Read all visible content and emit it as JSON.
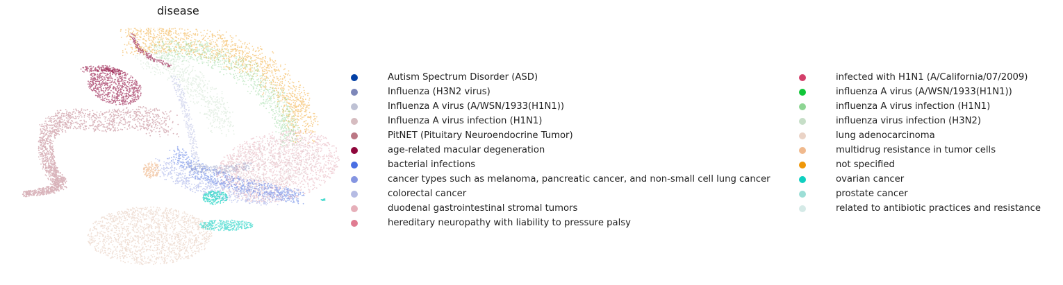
{
  "chart_data": {
    "type": "scatter",
    "title": "disease",
    "xlabel": "",
    "ylabel": "",
    "axes_visible": false,
    "grid": false,
    "legend_placement": "right",
    "legend_columns": 2,
    "series": [
      {
        "name": "Autism Spectrum Disorder (ASD)",
        "color": "#023fa5"
      },
      {
        "name": "Influenza (H3N2 virus)",
        "color": "#7d87b9"
      },
      {
        "name": "Influenza A virus (A/WSN/1933(H1N1))",
        "color": "#bec1d4"
      },
      {
        "name": "Influenza A virus infection (H1N1)",
        "color": "#d6bcc0"
      },
      {
        "name": "PitNET (Pituitary Neuroendocrine Tumor)",
        "color": "#bb7784"
      },
      {
        "name": "age-related macular degeneration",
        "color": "#8e063b"
      },
      {
        "name": "bacterial infections",
        "color": "#4a6fe3"
      },
      {
        "name": "cancer types such as melanoma, pancreatic cancer, and non-small cell lung cancer",
        "color": "#8595e1"
      },
      {
        "name": "colorectal cancer",
        "color": "#b5bbe3"
      },
      {
        "name": "duodenal gastrointestinal stromal tumors",
        "color": "#e6afb9"
      },
      {
        "name": "hereditary neuropathy with liability to pressure palsy",
        "color": "#e07b91"
      },
      {
        "name": "infected with H1N1 (A/California/07/2009)",
        "color": "#d33f6a"
      },
      {
        "name": "influenza A virus (A/WSN/1933(H1N1))",
        "color": "#11c638"
      },
      {
        "name": "influenza A virus infection (H1N1)",
        "color": "#8dd593"
      },
      {
        "name": "influenza virus infection (H3N2)",
        "color": "#c6dec7"
      },
      {
        "name": "lung adenocarcinoma",
        "color": "#ead3c6"
      },
      {
        "name": "multidrug resistance in tumor cells",
        "color": "#f0b98d"
      },
      {
        "name": "not specified",
        "color": "#ef9708"
      },
      {
        "name": "ovarian cancer",
        "color": "#0fcfc0"
      },
      {
        "name": "prostate cancer",
        "color": "#9cded6"
      },
      {
        "name": "related to antibiotic practices and resistance",
        "color": "#d5eae7"
      }
    ]
  }
}
